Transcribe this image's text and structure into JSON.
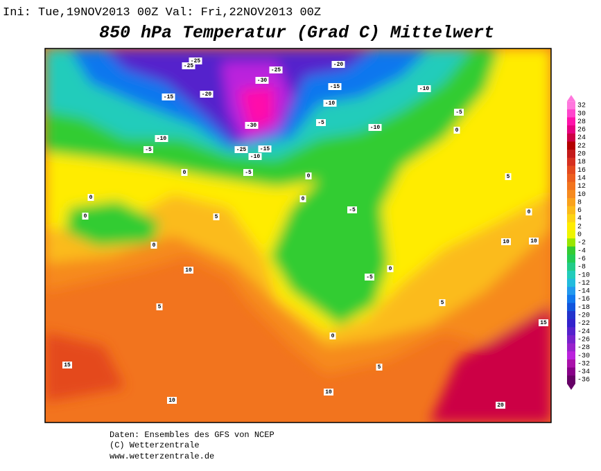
{
  "header": {
    "info": "Ini: Tue,19NOV2013 00Z Val: Fri,22NOV2013 00Z",
    "title": "850 hPa Temperatur (Grad C) Mittelwert"
  },
  "map": {
    "contour_labels": [
      -25,
      -25,
      -20,
      -25,
      -30,
      -15,
      -10,
      -15,
      -20,
      -10,
      -5,
      -5,
      -10,
      -30,
      0,
      -10,
      -5,
      -25,
      -15,
      -10,
      -5,
      0,
      0,
      5,
      0,
      0,
      -5,
      5,
      0,
      0,
      0,
      10,
      10,
      10,
      0,
      -5,
      5,
      5,
      15,
      0,
      15,
      5,
      10,
      10,
      20
    ]
  },
  "colorbar": {
    "labels": [
      32,
      30,
      28,
      26,
      24,
      22,
      20,
      18,
      16,
      14,
      12,
      10,
      8,
      6,
      4,
      2,
      0,
      -2,
      -4,
      -6,
      -8,
      -10,
      -12,
      -14,
      -16,
      -18,
      -20,
      -22,
      -24,
      -26,
      -28,
      -30,
      -32,
      -34,
      -36
    ],
    "colors": [
      "#ff77dd",
      "#ff44cc",
      "#ff11aa",
      "#e60080",
      "#cc0044",
      "#b30000",
      "#c41a1a",
      "#d63020",
      "#e44a1e",
      "#ec5e1e",
      "#f2741e",
      "#f68a1e",
      "#f9a21c",
      "#fbbb1a",
      "#fdd414",
      "#ffec00",
      "#eef500",
      "#99e600",
      "#33cc33",
      "#22cc55",
      "#22cc88",
      "#22ccbb",
      "#22bbdd",
      "#2299ee",
      "#1177ee",
      "#1155dd",
      "#2233cc",
      "#3322cc",
      "#5522cc",
      "#7722cc",
      "#9922cc",
      "#bb22dd",
      "#aa11aa",
      "#880088",
      "#660066"
    ]
  },
  "footer": {
    "lines": [
      "Daten: Ensembles des GFS von NCEP",
      "(C) Wetterzentrale",
      "www.wetterzentrale.de"
    ]
  }
}
